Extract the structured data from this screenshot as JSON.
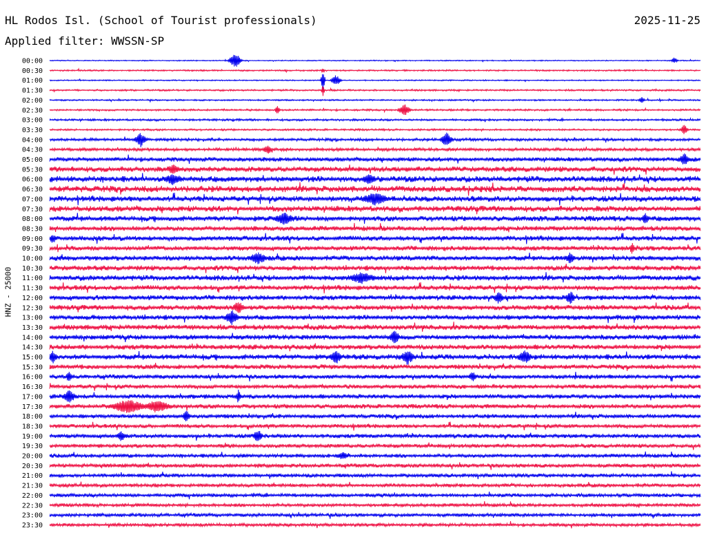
{
  "header": {
    "station": "HL Rodos Isl. (School of Tourist professionals)",
    "date": "2025-11-25",
    "filter": "Applied filter: WWSSN-SP",
    "channel": "HNZ - 25000"
  },
  "colors": {
    "even_trace": "#0000ee",
    "odd_trace": "#ee1144",
    "text": "#000000",
    "background": "#ffffff"
  },
  "chart_data": {
    "type": "line",
    "kind": "helicorder",
    "ylabel": "HNZ - 25000",
    "time_labels": [
      "00:00",
      "00:30",
      "01:00",
      "01:30",
      "02:00",
      "02:30",
      "03:00",
      "03:30",
      "04:00",
      "04:30",
      "05:00",
      "05:30",
      "06:00",
      "06:30",
      "07:00",
      "07:30",
      "08:00",
      "08:30",
      "09:00",
      "09:30",
      "10:00",
      "10:30",
      "11:00",
      "11:30",
      "12:00",
      "12:30",
      "13:00",
      "13:30",
      "14:00",
      "14:30",
      "15:00",
      "15:30",
      "16:00",
      "16:30",
      "17:00",
      "17:30",
      "18:00",
      "18:30",
      "19:00",
      "19:30",
      "20:00",
      "20:30",
      "21:00",
      "21:30",
      "22:00",
      "22:30",
      "23:00",
      "23:30"
    ],
    "noise_level": [
      0.6,
      0.9,
      0.7,
      1.0,
      0.9,
      1.1,
      1.2,
      1.1,
      1.6,
      1.8,
      2.6,
      3.2,
      3.6,
      3.8,
      3.4,
      3.5,
      3.2,
      3.0,
      3.0,
      2.8,
      3.0,
      3.0,
      3.2,
      3.0,
      2.9,
      3.0,
      3.0,
      3.1,
      3.0,
      3.0,
      3.2,
      2.8,
      2.6,
      2.5,
      2.7,
      2.7,
      2.5,
      2.4,
      2.5,
      2.4,
      2.3,
      2.4,
      2.3,
      2.2,
      2.2,
      2.1,
      2.1,
      2.0
    ],
    "events": [
      {
        "line": 0,
        "x": 0.285,
        "amp": 12,
        "dur": 0.012
      },
      {
        "line": 0,
        "x": 0.96,
        "amp": 5,
        "dur": 0.006
      },
      {
        "line": 1,
        "x": 0.42,
        "amp": 4,
        "dur": 0.004
      },
      {
        "line": 2,
        "x": 0.42,
        "amp": 16,
        "dur": 0.004
      },
      {
        "line": 2,
        "x": 0.44,
        "amp": 8,
        "dur": 0.01
      },
      {
        "line": 3,
        "x": 0.42,
        "amp": 9,
        "dur": 0.003
      },
      {
        "line": 4,
        "x": 0.91,
        "amp": 5,
        "dur": 0.006
      },
      {
        "line": 5,
        "x": 0.35,
        "amp": 8,
        "dur": 0.005
      },
      {
        "line": 5,
        "x": 0.545,
        "amp": 9,
        "dur": 0.012
      },
      {
        "line": 7,
        "x": 0.975,
        "amp": 9,
        "dur": 0.006
      },
      {
        "line": 8,
        "x": 0.14,
        "amp": 11,
        "dur": 0.012
      },
      {
        "line": 8,
        "x": 0.61,
        "amp": 11,
        "dur": 0.012
      },
      {
        "line": 9,
        "x": 0.335,
        "amp": 7,
        "dur": 0.01
      },
      {
        "line": 10,
        "x": 0.975,
        "amp": 9,
        "dur": 0.012
      },
      {
        "line": 11,
        "x": 0.19,
        "amp": 8,
        "dur": 0.015
      },
      {
        "line": 12,
        "x": 0.19,
        "amp": 9,
        "dur": 0.02
      },
      {
        "line": 12,
        "x": 0.49,
        "amp": 9,
        "dur": 0.014
      },
      {
        "line": 14,
        "x": 0.5,
        "amp": 10,
        "dur": 0.03
      },
      {
        "line": 16,
        "x": 0.36,
        "amp": 10,
        "dur": 0.02
      },
      {
        "line": 16,
        "x": 0.915,
        "amp": 9,
        "dur": 0.008
      },
      {
        "line": 18,
        "x": 0.005,
        "amp": 8,
        "dur": 0.008
      },
      {
        "line": 19,
        "x": 0.895,
        "amp": 10,
        "dur": 0.005
      },
      {
        "line": 20,
        "x": 0.32,
        "amp": 9,
        "dur": 0.02
      },
      {
        "line": 20,
        "x": 0.8,
        "amp": 9,
        "dur": 0.01
      },
      {
        "line": 22,
        "x": 0.48,
        "amp": 9,
        "dur": 0.03
      },
      {
        "line": 24,
        "x": 0.69,
        "amp": 10,
        "dur": 0.01
      },
      {
        "line": 24,
        "x": 0.8,
        "amp": 11,
        "dur": 0.01
      },
      {
        "line": 25,
        "x": 0.29,
        "amp": 10,
        "dur": 0.012
      },
      {
        "line": 26,
        "x": 0.28,
        "amp": 12,
        "dur": 0.014
      },
      {
        "line": 28,
        "x": 0.53,
        "amp": 10,
        "dur": 0.012
      },
      {
        "line": 30,
        "x": 0.005,
        "amp": 10,
        "dur": 0.01
      },
      {
        "line": 30,
        "x": 0.44,
        "amp": 11,
        "dur": 0.012
      },
      {
        "line": 30,
        "x": 0.55,
        "amp": 12,
        "dur": 0.014
      },
      {
        "line": 30,
        "x": 0.73,
        "amp": 11,
        "dur": 0.014
      },
      {
        "line": 32,
        "x": 0.03,
        "amp": 10,
        "dur": 0.006
      },
      {
        "line": 32,
        "x": 0.65,
        "amp": 9,
        "dur": 0.008
      },
      {
        "line": 34,
        "x": 0.03,
        "amp": 10,
        "dur": 0.014
      },
      {
        "line": 34,
        "x": 0.29,
        "amp": 10,
        "dur": 0.006
      },
      {
        "line": 35,
        "x": 0.12,
        "amp": 11,
        "dur": 0.036
      },
      {
        "line": 35,
        "x": 0.165,
        "amp": 10,
        "dur": 0.03
      },
      {
        "line": 36,
        "x": 0.21,
        "amp": 9,
        "dur": 0.008
      },
      {
        "line": 38,
        "x": 0.11,
        "amp": 8,
        "dur": 0.01
      },
      {
        "line": 38,
        "x": 0.32,
        "amp": 10,
        "dur": 0.01
      },
      {
        "line": 40,
        "x": 0.45,
        "amp": 6,
        "dur": 0.014
      }
    ]
  }
}
